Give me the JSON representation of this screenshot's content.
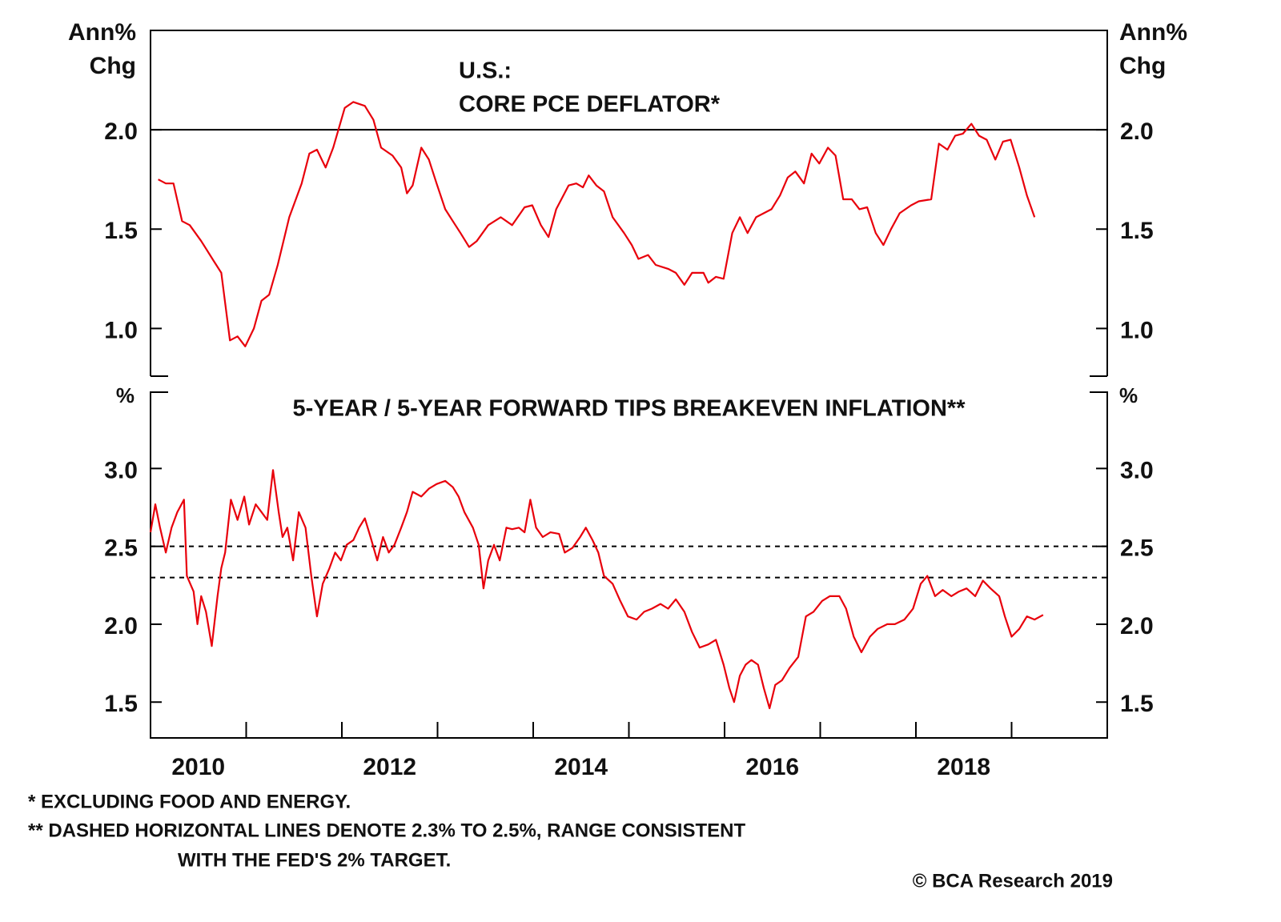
{
  "chart_data": [
    {
      "type": "line",
      "title": [
        "U.S.:",
        "CORE PCE DEFLATOR*"
      ],
      "ylabel": [
        "Ann%",
        "Chg"
      ],
      "color": "#e8000b",
      "xlim": [
        2010,
        2020
      ],
      "ylim": [
        0.76,
        2.5
      ],
      "yticks": [
        {
          "value": 1,
          "label": "1.0"
        },
        {
          "value": 1.5,
          "label": "1.5"
        },
        {
          "value": 2,
          "label": "2.0"
        }
      ],
      "ref_lines": [
        {
          "value": 2,
          "style": "solid"
        }
      ],
      "x": [
        2010.08,
        2010.16,
        2010.24,
        2010.33,
        2010.41,
        2010.53,
        2010.66,
        2010.74,
        2010.83,
        2010.91,
        2010.99,
        2011.08,
        2011.16,
        2011.24,
        2011.33,
        2011.45,
        2011.58,
        2011.66,
        2011.74,
        2011.83,
        2011.91,
        2012.03,
        2012.12,
        2012.24,
        2012.33,
        2012.41,
        2012.53,
        2012.62,
        2012.68,
        2012.74,
        2012.83,
        2012.91,
        2012.99,
        2013.08,
        2013.16,
        2013.24,
        2013.33,
        2013.41,
        2013.53,
        2013.66,
        2013.78,
        2013.91,
        2013.99,
        2014.08,
        2014.16,
        2014.24,
        2014.37,
        2014.45,
        2014.52,
        2014.58,
        2014.66,
        2014.74,
        2014.83,
        2014.95,
        2015.03,
        2015.1,
        2015.2,
        2015.28,
        2015.41,
        2015.49,
        2015.58,
        2015.66,
        2015.78,
        2015.83,
        2015.91,
        2015.99,
        2016.08,
        2016.16,
        2016.24,
        2016.33,
        2016.41,
        2016.49,
        2016.58,
        2016.66,
        2016.74,
        2016.83,
        2016.91,
        2016.99,
        2017.08,
        2017.16,
        2017.24,
        2017.33,
        2017.41,
        2017.49,
        2017.58,
        2017.66,
        2017.74,
        2017.83,
        2017.95,
        2018.03,
        2018.16,
        2018.24,
        2018.33,
        2018.41,
        2018.49,
        2018.58,
        2018.66,
        2018.74,
        2018.83,
        2018.91,
        2018.99,
        2019.08,
        2019.16,
        2019.24
      ],
      "values": [
        1.75,
        1.73,
        1.73,
        1.54,
        1.52,
        1.44,
        1.34,
        1.28,
        0.94,
        0.96,
        0.91,
        1.0,
        1.14,
        1.17,
        1.32,
        1.56,
        1.73,
        1.88,
        1.9,
        1.81,
        1.91,
        2.11,
        2.14,
        2.12,
        2.05,
        1.91,
        1.87,
        1.81,
        1.68,
        1.72,
        1.91,
        1.85,
        1.73,
        1.6,
        1.54,
        1.48,
        1.41,
        1.44,
        1.52,
        1.56,
        1.52,
        1.61,
        1.62,
        1.52,
        1.46,
        1.6,
        1.72,
        1.73,
        1.71,
        1.77,
        1.72,
        1.69,
        1.56,
        1.48,
        1.42,
        1.35,
        1.37,
        1.32,
        1.3,
        1.28,
        1.22,
        1.28,
        1.28,
        1.23,
        1.26,
        1.25,
        1.48,
        1.56,
        1.48,
        1.56,
        1.58,
        1.6,
        1.67,
        1.76,
        1.79,
        1.73,
        1.88,
        1.83,
        1.91,
        1.87,
        1.65,
        1.65,
        1.6,
        1.61,
        1.48,
        1.42,
        1.5,
        1.58,
        1.62,
        1.64,
        1.65,
        1.93,
        1.9,
        1.97,
        1.98,
        2.03,
        1.97,
        1.95,
        1.85,
        1.94,
        1.95,
        1.81,
        1.67,
        1.56
      ]
    },
    {
      "type": "line",
      "title": "5-YEAR / 5-YEAR FORWARD TIPS BREAKEVEN INFLATION**",
      "ylabel": "%",
      "color": "#e8000b",
      "xlim": [
        2010,
        2020
      ],
      "ylim": [
        1.27,
        3.49
      ],
      "xticks": [
        2011,
        2012,
        2013,
        2014,
        2015,
        2016,
        2017,
        2018,
        2019
      ],
      "year_labels": [
        2010,
        2012,
        2014,
        2016,
        2018
      ],
      "yticks": [
        {
          "value": 1.5,
          "label": "1.5"
        },
        {
          "value": 2,
          "label": "2.0"
        },
        {
          "value": 2.5,
          "label": "2.5"
        },
        {
          "value": 3,
          "label": "3.0"
        }
      ],
      "ref_lines": [
        {
          "value": 2.5,
          "style": "dashed"
        },
        {
          "value": 2.3,
          "style": "dashed"
        }
      ],
      "x": [
        2010.0,
        2010.05,
        2010.1,
        2010.16,
        2010.22,
        2010.28,
        2010.35,
        2010.38,
        2010.45,
        2010.49,
        2010.53,
        2010.58,
        2010.64,
        2010.7,
        2010.74,
        2010.78,
        2010.84,
        2010.91,
        2010.98,
        2011.03,
        2011.1,
        2011.16,
        2011.22,
        2011.28,
        2011.34,
        2011.38,
        2011.43,
        2011.49,
        2011.55,
        2011.62,
        2011.68,
        2011.74,
        2011.8,
        2011.87,
        2011.93,
        2011.99,
        2012.05,
        2012.12,
        2012.18,
        2012.24,
        2012.3,
        2012.37,
        2012.43,
        2012.49,
        2012.55,
        2012.62,
        2012.68,
        2012.74,
        2012.83,
        2012.91,
        2012.99,
        2013.08,
        2013.16,
        2013.22,
        2013.28,
        2013.37,
        2013.43,
        2013.48,
        2013.53,
        2013.59,
        2013.65,
        2013.72,
        2013.78,
        2013.85,
        2013.91,
        2013.97,
        2014.03,
        2014.1,
        2014.18,
        2014.27,
        2014.33,
        2014.41,
        2014.49,
        2014.55,
        2014.62,
        2014.68,
        2014.74,
        2014.83,
        2014.91,
        2014.99,
        2015.08,
        2015.16,
        2015.24,
        2015.33,
        2015.41,
        2015.49,
        2015.58,
        2015.66,
        2015.74,
        2015.83,
        2015.91,
        2015.99,
        2016.05,
        2016.1,
        2016.16,
        2016.22,
        2016.28,
        2016.35,
        2016.41,
        2016.47,
        2016.53,
        2016.6,
        2016.68,
        2016.77,
        2016.85,
        2016.93,
        2017.02,
        2017.1,
        2017.2,
        2017.27,
        2017.35,
        2017.43,
        2017.52,
        2017.6,
        2017.7,
        2017.78,
        2017.88,
        2017.97,
        2018.05,
        2018.12,
        2018.2,
        2018.28,
        2018.37,
        2018.45,
        2018.53,
        2018.62,
        2018.7,
        2018.78,
        2018.87,
        2018.93,
        2019.0,
        2019.08,
        2019.16,
        2019.24,
        2019.33
      ],
      "values": [
        2.59,
        2.77,
        2.62,
        2.46,
        2.62,
        2.72,
        2.8,
        2.31,
        2.21,
        2.0,
        2.18,
        2.08,
        1.86,
        2.18,
        2.36,
        2.46,
        2.8,
        2.67,
        2.82,
        2.64,
        2.77,
        2.72,
        2.67,
        2.99,
        2.72,
        2.56,
        2.62,
        2.41,
        2.72,
        2.62,
        2.31,
        2.05,
        2.26,
        2.36,
        2.46,
        2.41,
        2.51,
        2.54,
        2.62,
        2.68,
        2.56,
        2.41,
        2.56,
        2.46,
        2.51,
        2.62,
        2.72,
        2.85,
        2.82,
        2.87,
        2.9,
        2.92,
        2.88,
        2.82,
        2.72,
        2.62,
        2.51,
        2.23,
        2.41,
        2.51,
        2.41,
        2.62,
        2.61,
        2.62,
        2.59,
        2.8,
        2.62,
        2.56,
        2.59,
        2.58,
        2.46,
        2.49,
        2.56,
        2.62,
        2.54,
        2.46,
        2.31,
        2.26,
        2.15,
        2.05,
        2.03,
        2.08,
        2.1,
        2.13,
        2.1,
        2.16,
        2.08,
        1.95,
        1.85,
        1.87,
        1.9,
        1.74,
        1.59,
        1.5,
        1.67,
        1.74,
        1.77,
        1.74,
        1.59,
        1.46,
        1.61,
        1.64,
        1.72,
        1.79,
        2.05,
        2.08,
        2.15,
        2.18,
        2.18,
        2.1,
        1.92,
        1.82,
        1.92,
        1.97,
        2.0,
        2.0,
        2.03,
        2.1,
        2.26,
        2.31,
        2.18,
        2.22,
        2.18,
        2.21,
        2.23,
        2.18,
        2.28,
        2.23,
        2.18,
        2.05,
        1.92,
        1.97,
        2.05,
        2.03,
        2.06
      ]
    }
  ],
  "notes": [
    "*  EXCLUDING FOOD AND ENERGY.",
    "** DASHED HORIZONTAL LINES DENOTE 2.3% TO 2.5%, RANGE CONSISTENT",
    "WITH THE FED'S 2% TARGET."
  ],
  "credit": "© BCA Research 2019"
}
